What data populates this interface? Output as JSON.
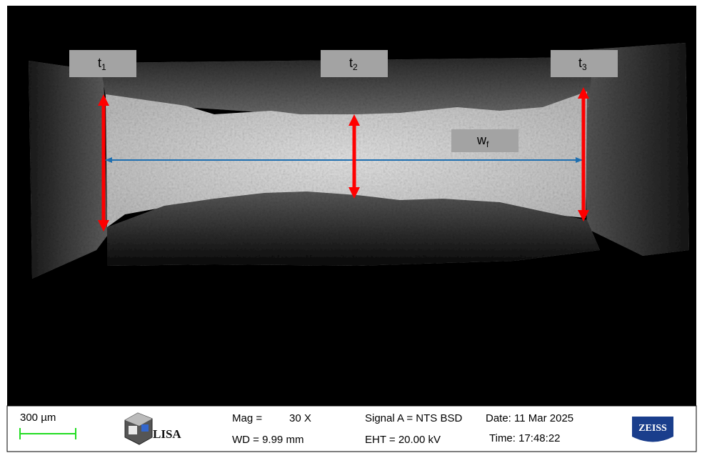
{
  "annotations": {
    "t1": {
      "main": "t",
      "sub": "1"
    },
    "t2": {
      "main": "t",
      "sub": "2"
    },
    "t3": {
      "main": "t",
      "sub": "3"
    },
    "wf": {
      "main": "w",
      "sub": "f"
    }
  },
  "info_bar": {
    "scale": "300 µm",
    "logo": "LISA",
    "mag_label": "Mag =",
    "mag_value": "30 X",
    "wd": "WD = 9.99 mm",
    "signal": "Signal A = NTS BSD",
    "date": "Date: 11 Mar 2025",
    "eht": "EHT = 20.00 kV",
    "time": "Time: 17:48:22",
    "brand": "ZEISS"
  }
}
